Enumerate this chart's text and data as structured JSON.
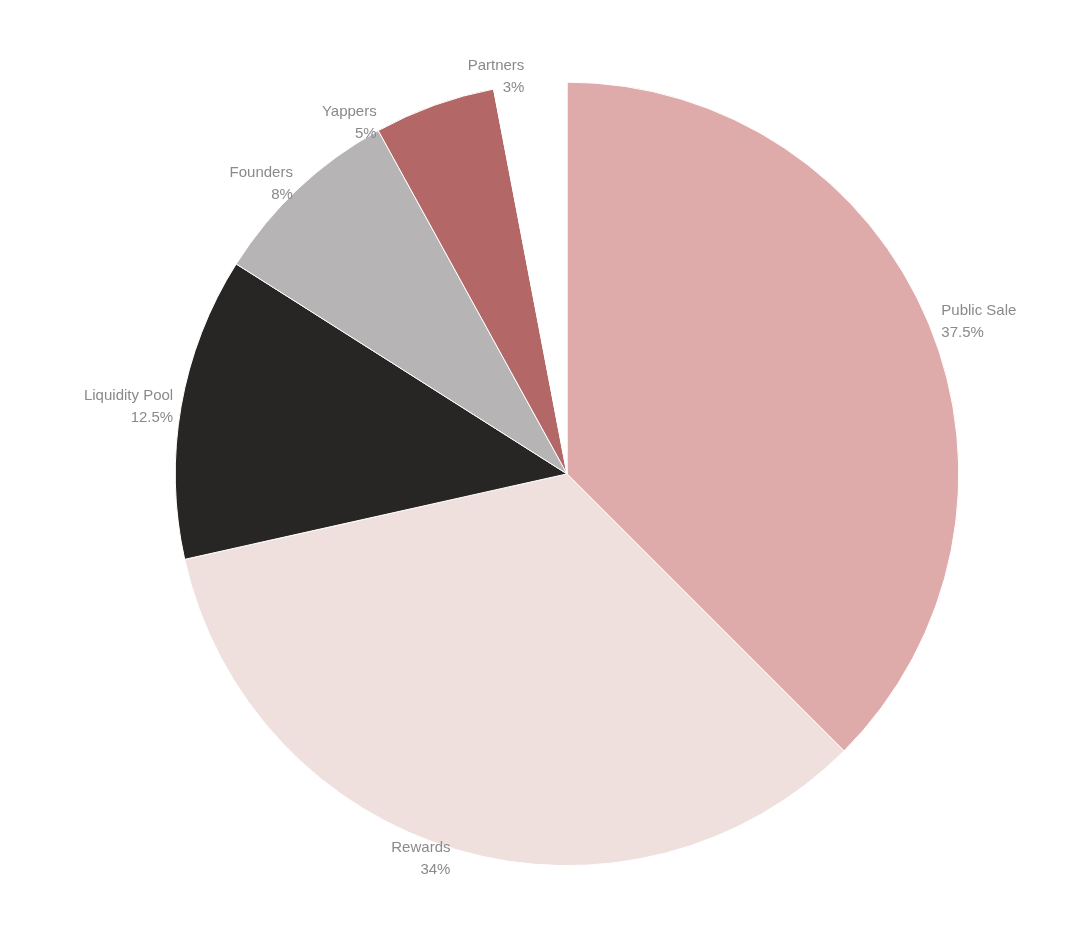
{
  "chart_data": {
    "type": "pie",
    "categories": [
      "Public Sale",
      "Rewards",
      "Liquidity Pool",
      "Founders",
      "Yappers",
      "Partners"
    ],
    "values": [
      37.5,
      34,
      12.5,
      8,
      5,
      3
    ],
    "value_labels": [
      "37.5%",
      "34%",
      "12.5%",
      "8%",
      "5%",
      "3%"
    ],
    "colors": [
      "#deabaa",
      "#efe0dd",
      "#272624",
      "#b6b4b5",
      "#b36867",
      "#ffffff"
    ],
    "legend": false
  }
}
